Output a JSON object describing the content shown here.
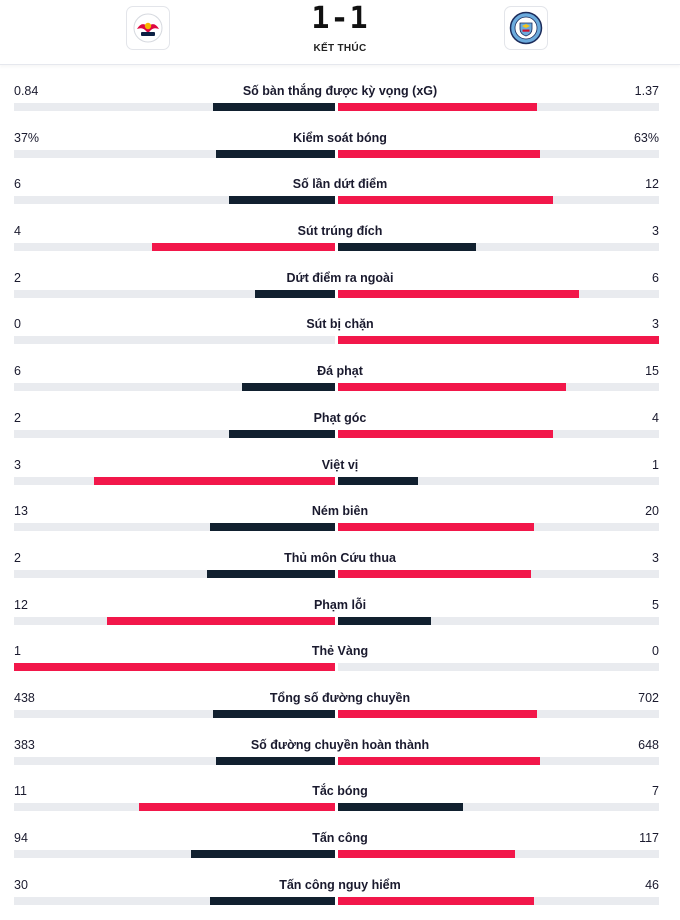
{
  "match": {
    "score": "1-1",
    "status": "KẾT THÚC",
    "home_logo_icon": "rb-leipzig-crest-icon",
    "away_logo_icon": "manchester-city-crest-icon"
  },
  "colors": {
    "dark": "#11202f",
    "red": "#f2174a",
    "track": "#e9ebef"
  },
  "stats": [
    {
      "name": "Số bàn thắng được kỳ vọng (xG)",
      "home": "0.84",
      "away": "1.37",
      "home_share": 0.38,
      "away_share": 0.62
    },
    {
      "name": "Kiểm soát bóng",
      "home": "37%",
      "away": "63%",
      "home_share": 0.37,
      "away_share": 0.63
    },
    {
      "name": "Số lần dứt điểm",
      "home": "6",
      "away": "12",
      "home_share": 0.33,
      "away_share": 0.67
    },
    {
      "name": "Sút trúng đích",
      "home": "4",
      "away": "3",
      "home_share": 0.57,
      "away_share": 0.43
    },
    {
      "name": "Dứt điểm ra ngoài",
      "home": "2",
      "away": "6",
      "home_share": 0.25,
      "away_share": 0.75
    },
    {
      "name": "Sút bị chặn",
      "home": "0",
      "away": "3",
      "home_share": 0.0,
      "away_share": 1.0
    },
    {
      "name": "Đá phạt",
      "home": "6",
      "away": "15",
      "home_share": 0.29,
      "away_share": 0.71
    },
    {
      "name": "Phạt góc",
      "home": "2",
      "away": "4",
      "home_share": 0.33,
      "away_share": 0.67
    },
    {
      "name": "Việt vị",
      "home": "3",
      "away": "1",
      "home_share": 0.75,
      "away_share": 0.25
    },
    {
      "name": "Ném biên",
      "home": "13",
      "away": "20",
      "home_share": 0.39,
      "away_share": 0.61
    },
    {
      "name": "Thủ môn Cứu thua",
      "home": "2",
      "away": "3",
      "home_share": 0.4,
      "away_share": 0.6
    },
    {
      "name": "Phạm lỗi",
      "home": "12",
      "away": "5",
      "home_share": 0.71,
      "away_share": 0.29
    },
    {
      "name": "Thẻ Vàng",
      "home": "1",
      "away": "0",
      "home_share": 1.0,
      "away_share": 0.0
    },
    {
      "name": "Tổng số đường chuyền",
      "home": "438",
      "away": "702",
      "home_share": 0.38,
      "away_share": 0.62
    },
    {
      "name": "Số đường chuyền hoàn thành",
      "home": "383",
      "away": "648",
      "home_share": 0.37,
      "away_share": 0.63
    },
    {
      "name": "Tắc bóng",
      "home": "11",
      "away": "7",
      "home_share": 0.61,
      "away_share": 0.39
    },
    {
      "name": "Tấn công",
      "home": "94",
      "away": "117",
      "home_share": 0.45,
      "away_share": 0.55
    },
    {
      "name": "Tấn công nguy hiểm",
      "home": "30",
      "away": "46",
      "home_share": 0.39,
      "away_share": 0.61
    }
  ]
}
